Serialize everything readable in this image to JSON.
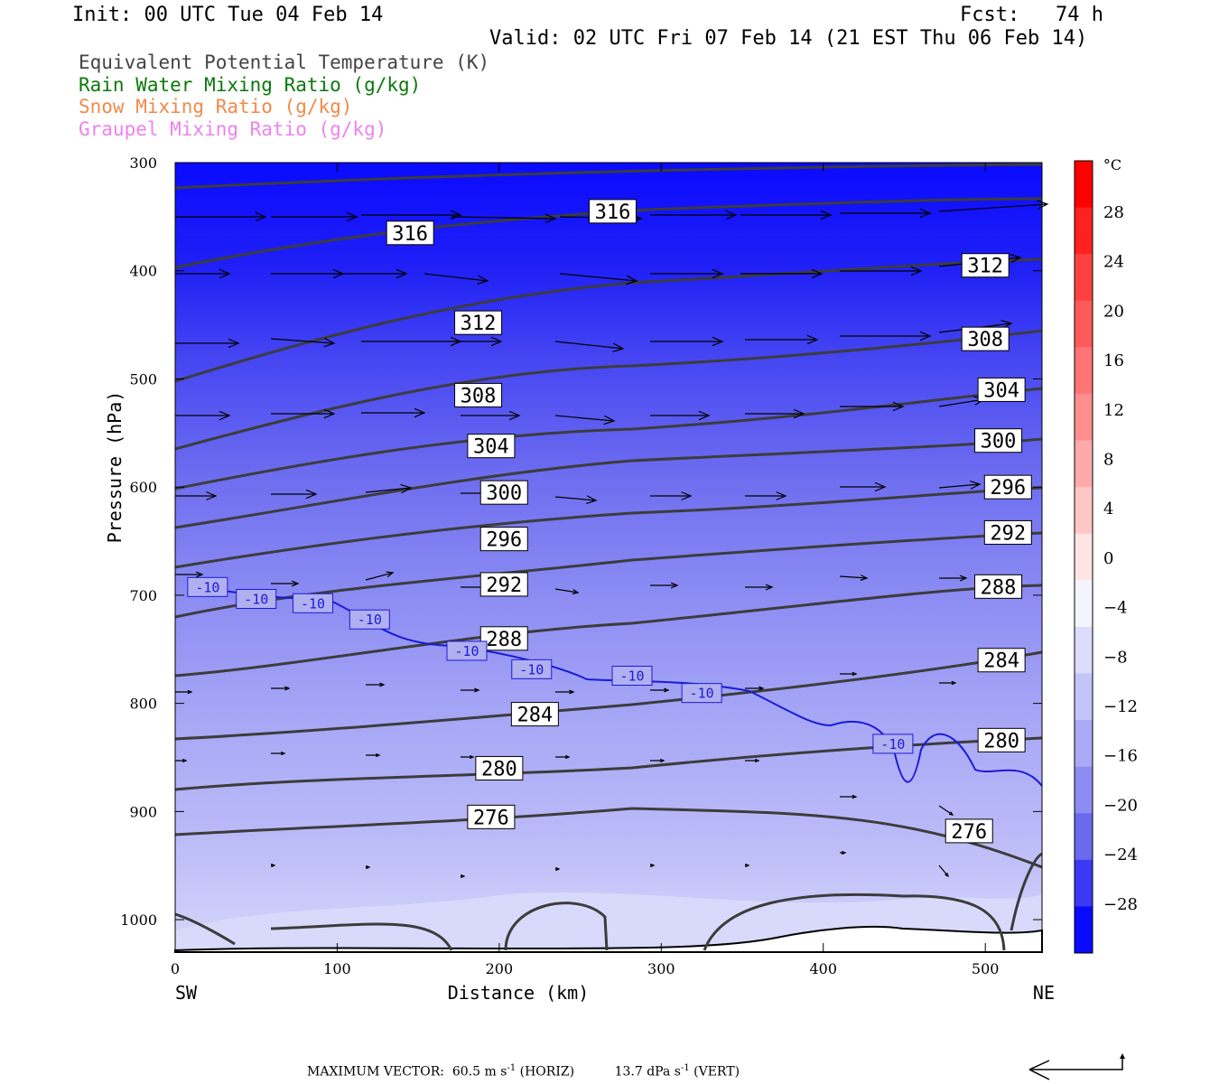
{
  "header": {
    "init": "Init: 00 UTC Tue 04 Feb 14",
    "fcst": "Fcst:   74 h",
    "valid": "Valid: 02 UTC Fri 07 Feb 14 (21 EST Thu 06 Feb 14)"
  },
  "legend": {
    "items": [
      {
        "label": "Equivalent Potential Temperature (K)",
        "color": "#444444"
      },
      {
        "label": "Rain Water Mixing Ratio (g/kg)",
        "color": "#0a7a0a"
      },
      {
        "label": "Snow Mixing Ratio (g/kg)",
        "color": "#f08a4a"
      },
      {
        "label": "Graupel Mixing Ratio (g/kg)",
        "color": "#ee82ee"
      }
    ]
  },
  "chart_data": {
    "type": "heatmap",
    "description_fields": {
      "filled": "temperature (°C)",
      "contours": "equivalent potential temperature (K)",
      "blue_contour": "-10 °C isotherm",
      "vectors": "circulation vectors"
    },
    "xlabel": "Distance (km)",
    "ylabel": "Pressure (hPa)",
    "x_left_label": "SW",
    "x_right_label": "NE",
    "xlim": [
      0,
      535
    ],
    "ylim": [
      1030,
      300
    ],
    "xticks": [
      "0",
      "100",
      "200",
      "300",
      "400",
      "500"
    ],
    "yticks": [
      "300",
      "400",
      "500",
      "600",
      "700",
      "800",
      "900",
      "1000"
    ],
    "colorbar": {
      "unit": "°C",
      "labels": [
        "28",
        "24",
        "20",
        "16",
        "12",
        "8",
        "4",
        "0",
        "-4",
        "-8",
        "-12",
        "-16",
        "-20",
        "-24",
        "-28"
      ]
    },
    "theta_e_labels": [
      {
        "text": "316",
        "x": 145,
        "p": 365
      },
      {
        "text": "316",
        "x": 270,
        "p": 345
      },
      {
        "text": "312",
        "x": 500,
        "p": 395
      },
      {
        "text": "312",
        "x": 187,
        "p": 448
      },
      {
        "text": "308",
        "x": 500,
        "p": 463
      },
      {
        "text": "308",
        "x": 187,
        "p": 515
      },
      {
        "text": "304",
        "x": 510,
        "p": 510
      },
      {
        "text": "304",
        "x": 195,
        "p": 562
      },
      {
        "text": "300",
        "x": 508,
        "p": 557
      },
      {
        "text": "300",
        "x": 203,
        "p": 605
      },
      {
        "text": "296",
        "x": 514,
        "p": 600
      },
      {
        "text": "296",
        "x": 203,
        "p": 648
      },
      {
        "text": "292",
        "x": 514,
        "p": 642
      },
      {
        "text": "292",
        "x": 203,
        "p": 690
      },
      {
        "text": "288",
        "x": 508,
        "p": 692
      },
      {
        "text": "288",
        "x": 203,
        "p": 740
      },
      {
        "text": "284",
        "x": 510,
        "p": 760
      },
      {
        "text": "284",
        "x": 222,
        "p": 810
      },
      {
        "text": "280",
        "x": 510,
        "p": 834
      },
      {
        "text": "280",
        "x": 200,
        "p": 860
      },
      {
        "text": "276",
        "x": 490,
        "p": 918
      },
      {
        "text": "276",
        "x": 195,
        "p": 905
      }
    ],
    "isotherm_labels": [
      {
        "text": "-10",
        "x": 20,
        "p": 692
      },
      {
        "text": "-10",
        "x": 50,
        "p": 703
      },
      {
        "text": "-10",
        "x": 85,
        "p": 707
      },
      {
        "text": "-10",
        "x": 120,
        "p": 722
      },
      {
        "text": "-10",
        "x": 180,
        "p": 751
      },
      {
        "text": "-10",
        "x": 220,
        "p": 768
      },
      {
        "text": "-10",
        "x": 282,
        "p": 774
      },
      {
        "text": "-10",
        "x": 325,
        "p": 790
      },
      {
        "text": "-10",
        "x": 443,
        "p": 837
      }
    ]
  },
  "footer": {
    "max_vector_label": "MAXIMUM VECTOR:",
    "horiz_value": "60.5 m s",
    "horiz_exp": "-1",
    "horiz_tag": "(HORIZ)",
    "vert_value": "13.7 dPa s",
    "vert_exp": "-1",
    "vert_tag": "(VERT)"
  }
}
